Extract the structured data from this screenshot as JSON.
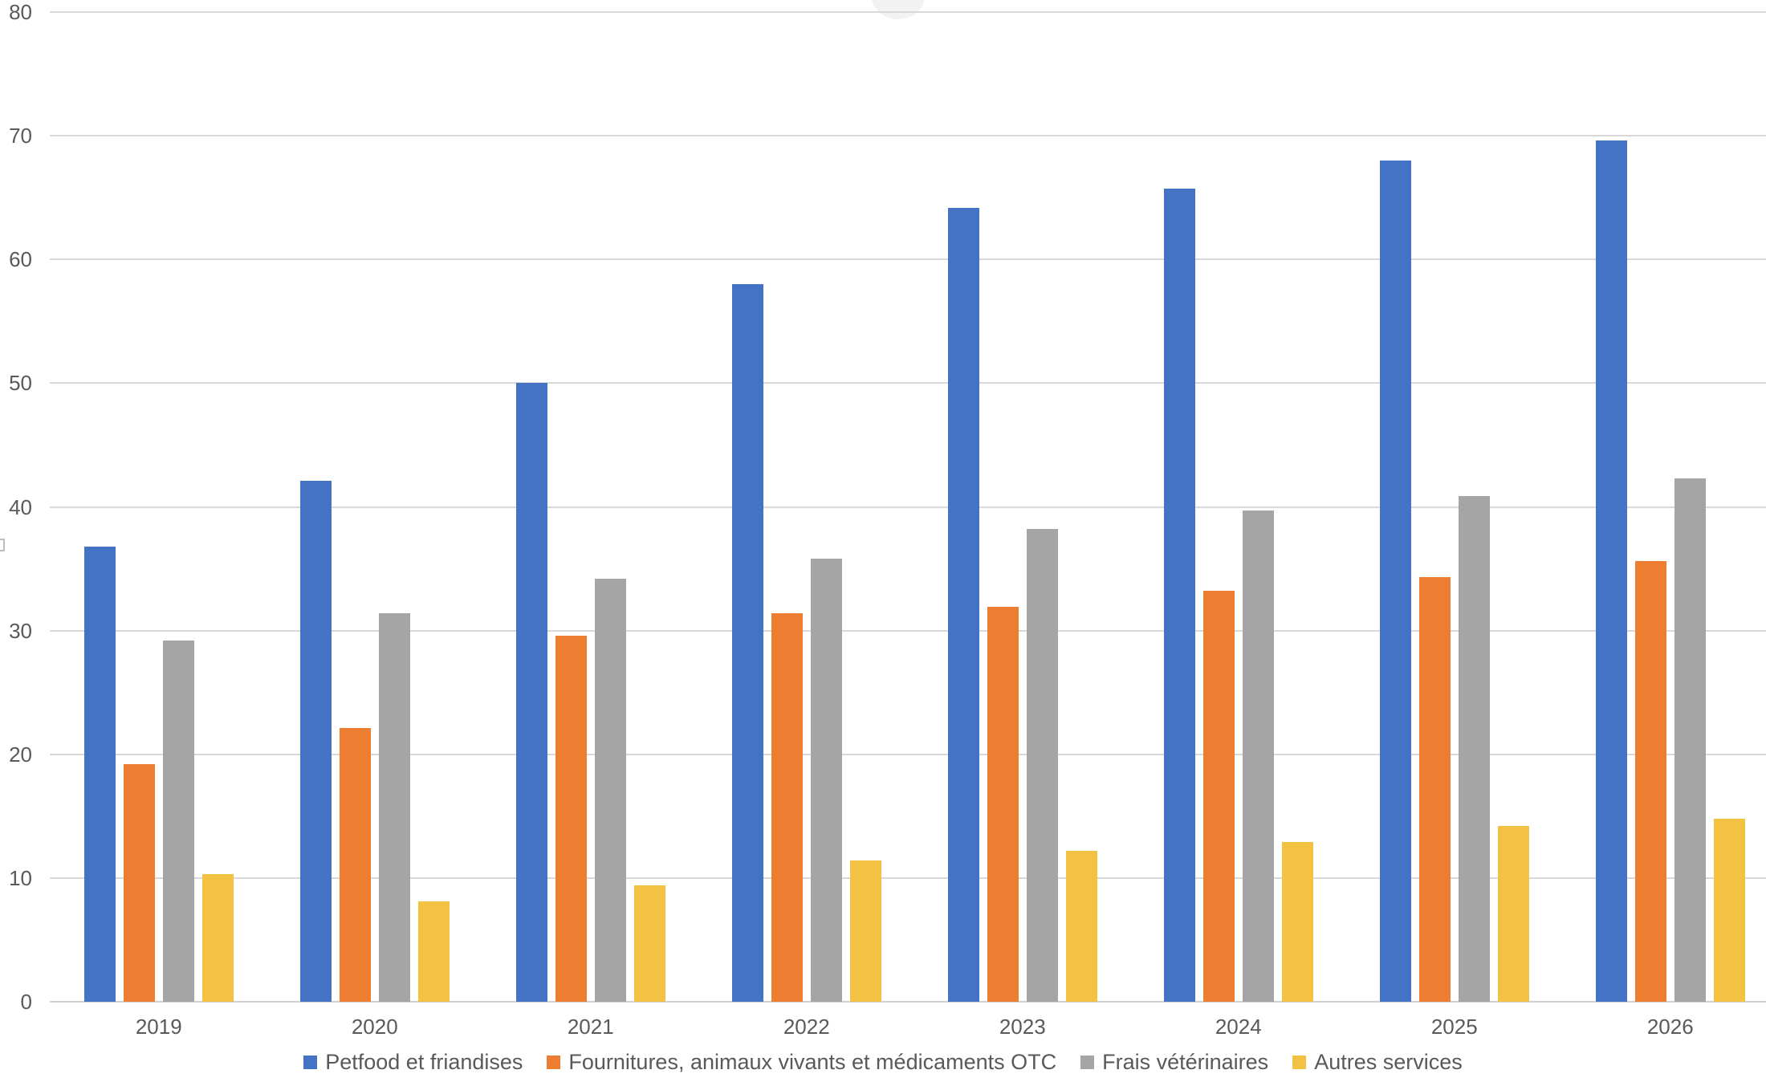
{
  "chart_data": {
    "type": "bar",
    "title": "",
    "xlabel": "",
    "ylabel": "",
    "categories": [
      "2019",
      "2020",
      "2021",
      "2022",
      "2023",
      "2024",
      "2025",
      "2026"
    ],
    "series": [
      {
        "name": "Petfood et friandises",
        "color": "#4472C4",
        "values": [
          36.8,
          42.1,
          50.0,
          58.0,
          64.2,
          65.7,
          68.0,
          69.6
        ]
      },
      {
        "name": "Fournitures, animaux vivants et médicaments OTC",
        "color": "#ED7D31",
        "values": [
          19.2,
          22.1,
          29.6,
          31.4,
          31.9,
          33.2,
          34.3,
          35.6
        ]
      },
      {
        "name": "Frais vétérinaires",
        "color": "#A5A5A5",
        "values": [
          29.2,
          31.4,
          34.2,
          35.8,
          38.2,
          39.7,
          40.9,
          42.3
        ]
      },
      {
        "name": "Autres services",
        "color": "#F4C242",
        "values": [
          10.3,
          8.1,
          9.4,
          11.4,
          12.2,
          12.9,
          14.2,
          14.8
        ]
      }
    ],
    "ylim": [
      0,
      80
    ],
    "yticks": [
      0,
      10,
      20,
      30,
      40,
      50,
      60,
      70,
      80
    ],
    "grid": true,
    "gridline_color": "#D9D9D9",
    "tick_label_color": "#595959",
    "legend_position": "bottom"
  }
}
